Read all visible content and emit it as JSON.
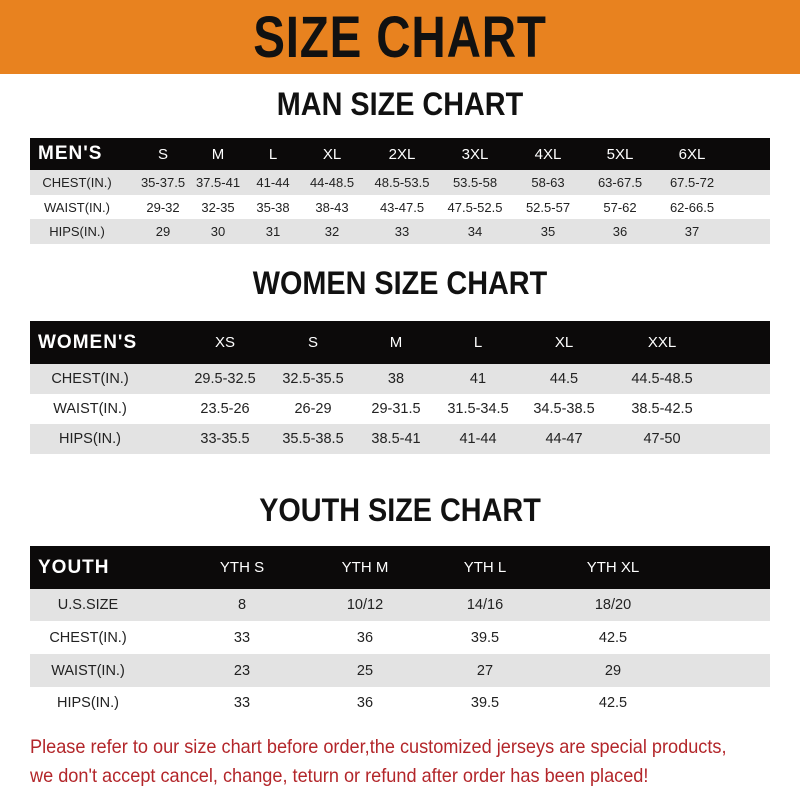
{
  "banner": "SIZE CHART",
  "men": {
    "title": "MAN SIZE CHART",
    "header": [
      "MEN'S",
      "S",
      "M",
      "L",
      "XL",
      "2XL",
      "3XL",
      "4XL",
      "5XL",
      "6XL"
    ],
    "rows": [
      [
        "CHEST(IN.)",
        "35-37.5",
        "37.5-41",
        "41-44",
        "44-48.5",
        "48.5-53.5",
        "53.5-58",
        "58-63",
        "63-67.5",
        "67.5-72"
      ],
      [
        "WAIST(IN.)",
        "29-32",
        "32-35",
        "35-38",
        "38-43",
        "43-47.5",
        "47.5-52.5",
        "52.5-57",
        "57-62",
        "62-66.5"
      ],
      [
        "HIPS(IN.)",
        "29",
        "30",
        "31",
        "32",
        "33",
        "34",
        "35",
        "36",
        "37"
      ]
    ]
  },
  "women": {
    "title": "WOMEN SIZE CHART",
    "header": [
      "WOMEN'S",
      "XS",
      "S",
      "M",
      "L",
      "XL",
      "XXL"
    ],
    "rows": [
      [
        "CHEST(IN.)",
        "29.5-32.5",
        "32.5-35.5",
        "38",
        "41",
        "44.5",
        "44.5-48.5"
      ],
      [
        "WAIST(IN.)",
        "23.5-26",
        "26-29",
        "29-31.5",
        "31.5-34.5",
        "34.5-38.5",
        "38.5-42.5"
      ],
      [
        "HIPS(IN.)",
        "33-35.5",
        "35.5-38.5",
        "38.5-41",
        "41-44",
        "44-47",
        "47-50"
      ]
    ]
  },
  "youth": {
    "title": "YOUTH SIZE CHART",
    "header": [
      "YOUTH",
      "YTH S",
      "YTH M",
      "YTH L",
      "YTH XL"
    ],
    "rows": [
      [
        "U.S.SIZE",
        "8",
        "10/12",
        "14/16",
        "18/20"
      ],
      [
        "CHEST(IN.)",
        "33",
        "36",
        "39.5",
        "42.5"
      ],
      [
        "WAIST(IN.)",
        "23",
        "25",
        "27",
        "29"
      ],
      [
        "HIPS(IN.)",
        "33",
        "36",
        "39.5",
        "42.5"
      ]
    ]
  },
  "footer": {
    "line1": "Please refer to our size chart before order,the customized jerseys are special products,",
    "line2": "we don't accept cancel, change, teturn or refund after order has been placed!"
  },
  "colors": {
    "banner": "#e8821f",
    "header_row": "#0c0a0a",
    "shaded_row": "#e3e3e3",
    "notice_text": "#b3262a"
  }
}
